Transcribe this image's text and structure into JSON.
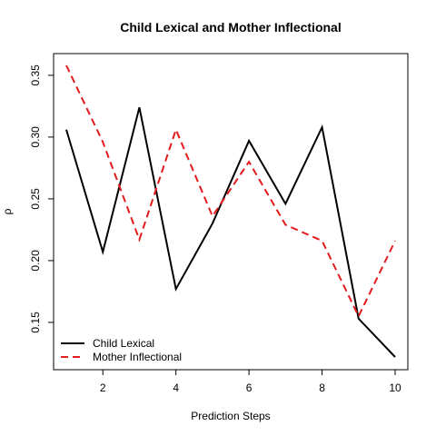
{
  "chart_data": {
    "type": "line",
    "title": "Child Lexical and Mother Inflectional",
    "xlabel": "Prediction Steps",
    "ylabel": "ρ",
    "x": [
      1,
      2,
      3,
      4,
      5,
      6,
      7,
      8,
      9,
      10
    ],
    "xlim": [
      1,
      10
    ],
    "ylim": [
      0.122,
      0.358
    ],
    "xticks": [
      2,
      4,
      6,
      8,
      10
    ],
    "yticks": [
      0.15,
      0.2,
      0.25,
      0.3,
      0.35
    ],
    "ytick_labels": [
      "0.15",
      "0.20",
      "0.25",
      "0.30",
      "0.35"
    ],
    "grid": false,
    "legend_position": "bottom-left",
    "series": [
      {
        "name": "Child Lexical",
        "color": "#000000",
        "style": "solid",
        "values": [
          0.306,
          0.207,
          0.324,
          0.177,
          0.23,
          0.297,
          0.246,
          0.308,
          0.153,
          0.122
        ]
      },
      {
        "name": "Mother Inflectional",
        "color": "#e41a1c",
        "style": "dashed",
        "values": [
          0.358,
          0.296,
          0.217,
          0.306,
          0.236,
          0.28,
          0.229,
          0.216,
          0.155,
          0.216
        ]
      }
    ]
  }
}
